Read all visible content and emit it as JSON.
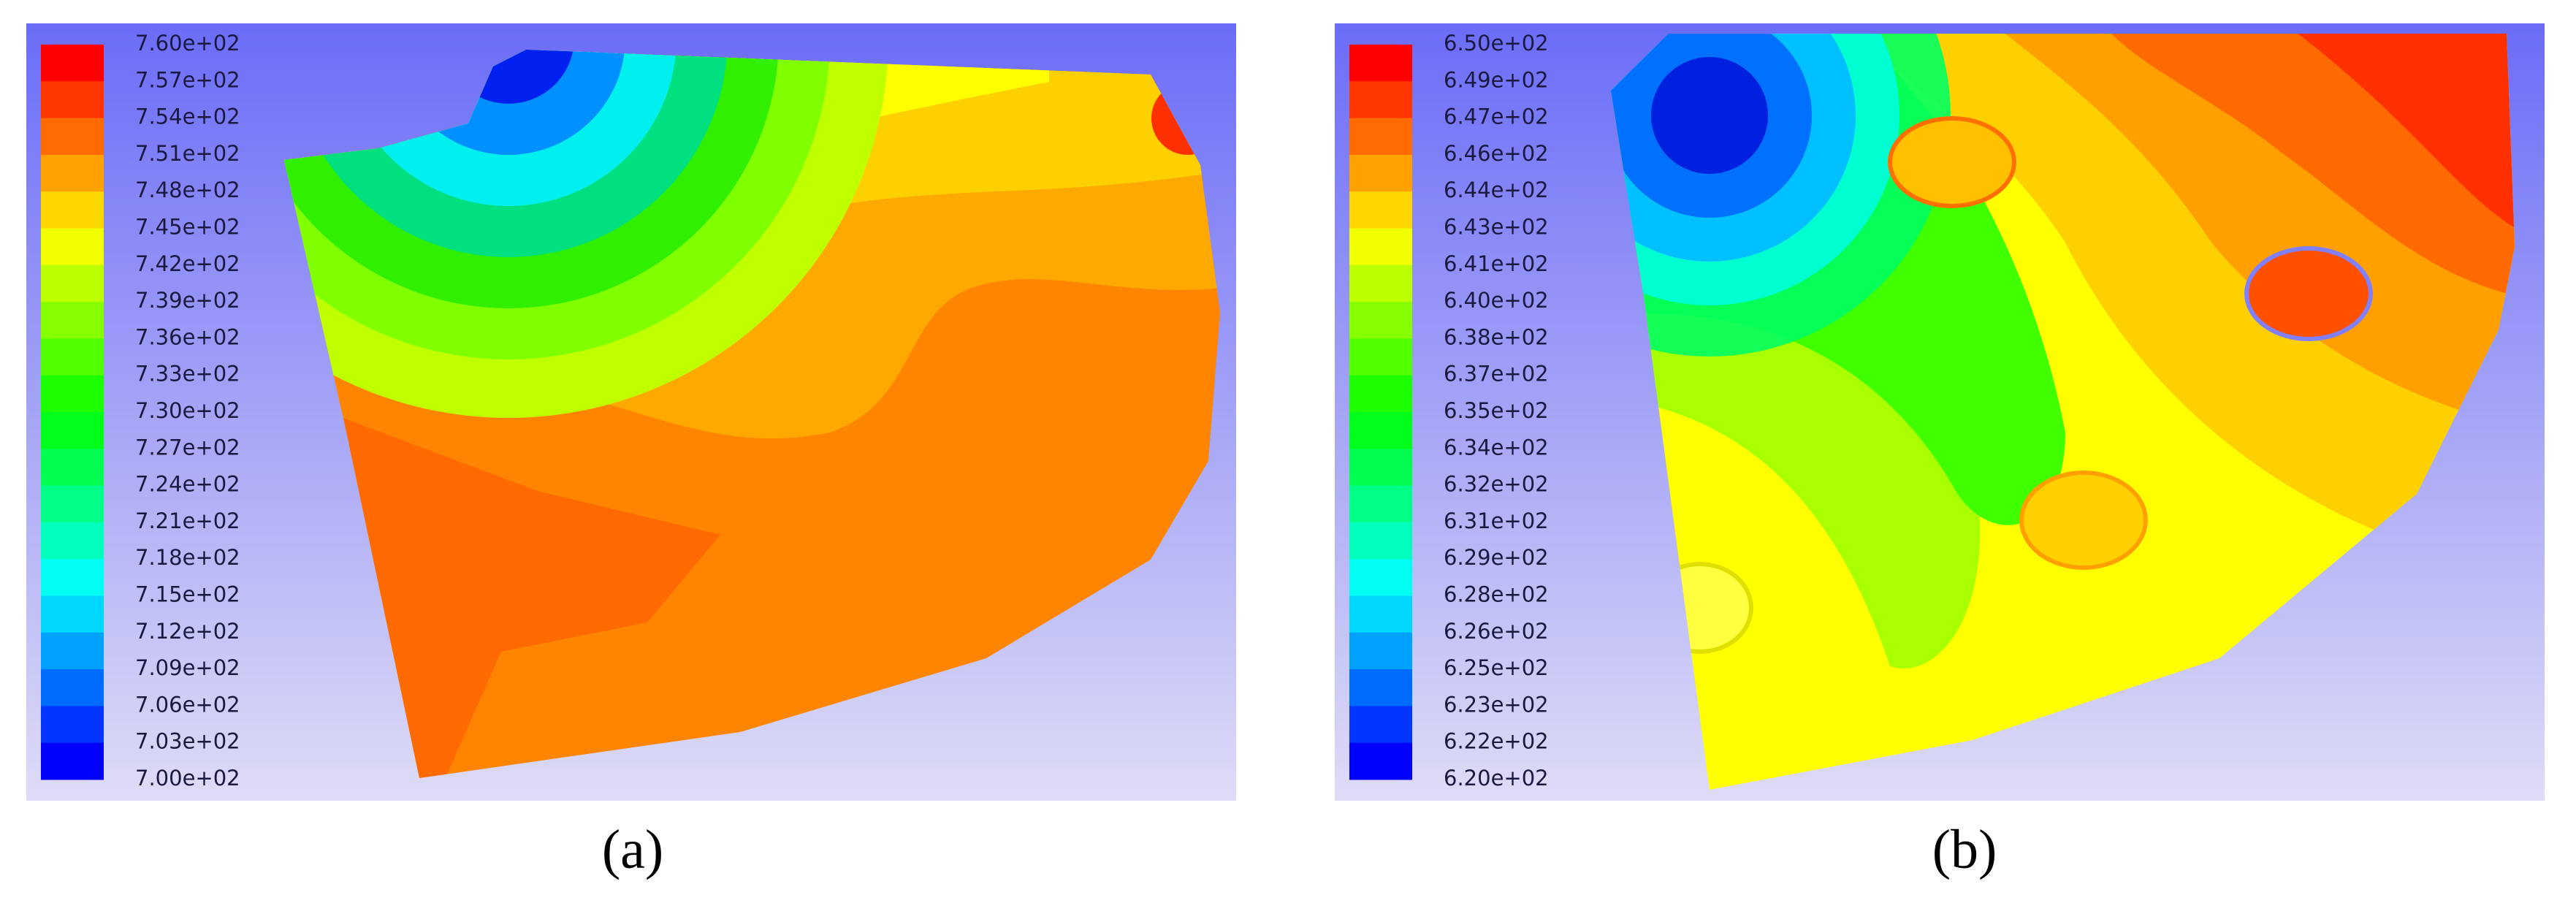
{
  "panels": [
    {
      "caption": "(a)",
      "colorbar_labels": [
        "7.60e+02",
        "7.57e+02",
        "7.54e+02",
        "7.51e+02",
        "7.48e+02",
        "7.45e+02",
        "7.42e+02",
        "7.39e+02",
        "7.36e+02",
        "7.33e+02",
        "7.30e+02",
        "7.27e+02",
        "7.24e+02",
        "7.21e+02",
        "7.18e+02",
        "7.15e+02",
        "7.12e+02",
        "7.09e+02",
        "7.06e+02",
        "7.03e+02",
        "7.00e+02"
      ]
    },
    {
      "caption": "(b)",
      "colorbar_labels": [
        "6.50e+02",
        "6.49e+02",
        "6.47e+02",
        "6.46e+02",
        "6.44e+02",
        "6.43e+02",
        "6.41e+02",
        "6.40e+02",
        "6.38e+02",
        "6.37e+02",
        "6.35e+02",
        "6.34e+02",
        "6.32e+02",
        "6.31e+02",
        "6.29e+02",
        "6.28e+02",
        "6.26e+02",
        "6.25e+02",
        "6.23e+02",
        "6.22e+02",
        "6.20e+02"
      ]
    }
  ]
}
